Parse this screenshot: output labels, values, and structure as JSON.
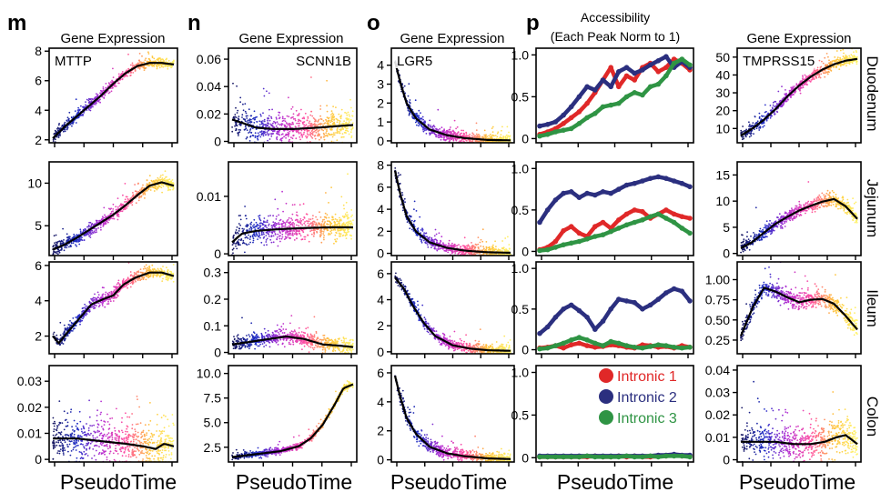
{
  "figure": {
    "panel_letters": [
      "m",
      "n",
      "o",
      "p"
    ],
    "column_titles": {
      "m": "Gene Expression",
      "n": "Gene Expression",
      "o": "Gene Expression",
      "p_line1": "Accessibility",
      "p_line2": "(Each Peak Norm to 1)",
      "q": "Gene Expression"
    },
    "xlabel": "PseudoTime",
    "row_labels": [
      "Duodenum",
      "Jejunum",
      "Ileum",
      "Colon"
    ],
    "gradient_colors": [
      "#15155e",
      "#2230c8",
      "#b52fd3",
      "#ff4fa3",
      "#ffc23a",
      "#fff56a"
    ],
    "legend": [
      {
        "label": "Intronic 1",
        "color": "#e02828"
      },
      {
        "label": "Intronic 2",
        "color": "#2b2f7f"
      },
      {
        "label": "Intronic 3",
        "color": "#2f9444"
      }
    ]
  },
  "chart_data": [
    {
      "id": "m-duodenum",
      "type": "scatter",
      "gene": "MTTP",
      "tick_labels": [
        "2",
        "4",
        "6",
        "8"
      ],
      "ylim": [
        1.8,
        8.2
      ],
      "trend": [
        [
          0,
          2.1
        ],
        [
          0.1,
          2.9
        ],
        [
          0.2,
          3.6
        ],
        [
          0.3,
          4.3
        ],
        [
          0.4,
          5.0
        ],
        [
          0.5,
          5.8
        ],
        [
          0.6,
          6.5
        ],
        [
          0.7,
          7.0
        ],
        [
          0.8,
          7.2
        ],
        [
          0.9,
          7.2
        ],
        [
          1,
          7.1
        ]
      ],
      "spread": 0.35
    },
    {
      "id": "m-jejunum",
      "type": "scatter",
      "gene": "",
      "tick_labels": [
        "5",
        "10"
      ],
      "ylim": [
        1.5,
        12.5
      ],
      "trend": [
        [
          0,
          2.2
        ],
        [
          0.1,
          2.8
        ],
        [
          0.2,
          3.6
        ],
        [
          0.3,
          4.5
        ],
        [
          0.4,
          5.4
        ],
        [
          0.5,
          6.3
        ],
        [
          0.6,
          7.4
        ],
        [
          0.7,
          8.6
        ],
        [
          0.8,
          9.7
        ],
        [
          0.9,
          10.1
        ],
        [
          1,
          9.7
        ]
      ],
      "spread": 0.8
    },
    {
      "id": "m-ileum",
      "type": "scatter",
      "gene": "",
      "tick_labels": [
        "2",
        "4",
        "6"
      ],
      "ylim": [
        1.0,
        6.2
      ],
      "trend": [
        [
          0,
          2.0
        ],
        [
          0.05,
          1.6
        ],
        [
          0.12,
          2.2
        ],
        [
          0.22,
          3.0
        ],
        [
          0.32,
          3.8
        ],
        [
          0.42,
          4.1
        ],
        [
          0.5,
          4.3
        ],
        [
          0.58,
          4.9
        ],
        [
          0.68,
          5.3
        ],
        [
          0.8,
          5.6
        ],
        [
          0.9,
          5.6
        ],
        [
          1,
          5.4
        ]
      ],
      "spread": 0.35
    },
    {
      "id": "m-colon",
      "type": "scatter",
      "gene": "",
      "tick_labels": [
        "0",
        "0.01",
        "0.02",
        "0.03"
      ],
      "ylim": [
        -0.001,
        0.036
      ],
      "trend": [
        [
          0,
          0.008
        ],
        [
          0.2,
          0.008
        ],
        [
          0.4,
          0.007
        ],
        [
          0.6,
          0.006
        ],
        [
          0.75,
          0.005
        ],
        [
          0.85,
          0.004
        ],
        [
          0.92,
          0.006
        ],
        [
          1,
          0.005
        ]
      ],
      "spread": 0.009
    },
    {
      "id": "n-duodenum",
      "type": "scatter",
      "gene": "SCNN1B",
      "tick_labels": [
        "0",
        "0.02",
        "0.04",
        "0.06"
      ],
      "ylim": [
        -0.001,
        0.068
      ],
      "trend": [
        [
          0,
          0.016
        ],
        [
          0.1,
          0.013
        ],
        [
          0.2,
          0.01
        ],
        [
          0.35,
          0.009
        ],
        [
          0.5,
          0.009
        ],
        [
          0.7,
          0.01
        ],
        [
          0.85,
          0.011
        ],
        [
          1,
          0.012
        ]
      ],
      "spread": 0.012
    },
    {
      "id": "n-jejunum",
      "type": "scatter",
      "gene": "",
      "tick_labels": [
        "0",
        "0.01"
      ],
      "ylim": [
        -0.0003,
        0.016
      ],
      "trend": [
        [
          0,
          0.002
        ],
        [
          0.08,
          0.0035
        ],
        [
          0.2,
          0.004
        ],
        [
          0.4,
          0.0043
        ],
        [
          0.6,
          0.0045
        ],
        [
          0.8,
          0.0046
        ],
        [
          1,
          0.0046
        ]
      ],
      "spread": 0.0025
    },
    {
      "id": "n-ileum",
      "type": "scatter",
      "gene": "",
      "tick_labels": [
        "0",
        "0.1",
        "0.2",
        "0.3"
      ],
      "ylim": [
        -0.005,
        0.34
      ],
      "trend": [
        [
          0,
          0.03
        ],
        [
          0.15,
          0.04
        ],
        [
          0.3,
          0.05
        ],
        [
          0.45,
          0.06
        ],
        [
          0.6,
          0.05
        ],
        [
          0.75,
          0.03
        ],
        [
          0.9,
          0.025
        ],
        [
          1,
          0.02
        ]
      ],
      "spread": 0.03
    },
    {
      "id": "n-colon",
      "type": "scatter",
      "gene": "",
      "tick_labels": [
        "2.5",
        "5.0",
        "7.5",
        "10.0"
      ],
      "ylim": [
        1.0,
        10.8
      ],
      "trend": [
        [
          0,
          1.5
        ],
        [
          0.2,
          1.8
        ],
        [
          0.4,
          2.1
        ],
        [
          0.55,
          2.6
        ],
        [
          0.65,
          3.4
        ],
        [
          0.75,
          4.8
        ],
        [
          0.85,
          6.9
        ],
        [
          0.92,
          8.5
        ],
        [
          1,
          8.9
        ]
      ],
      "spread": 0.35
    },
    {
      "id": "o-duodenum",
      "type": "scatter",
      "gene": "LGR5",
      "tick_labels": [
        "0",
        "1",
        "2",
        "3",
        "4"
      ],
      "ylim": [
        -0.1,
        4.9
      ],
      "trend": [
        [
          0,
          4.2
        ],
        [
          0.05,
          3.0
        ],
        [
          0.1,
          2.0
        ],
        [
          0.18,
          1.2
        ],
        [
          0.3,
          0.6
        ],
        [
          0.45,
          0.3
        ],
        [
          0.6,
          0.15
        ],
        [
          0.8,
          0.05
        ],
        [
          1,
          0.03
        ]
      ],
      "spread": 0.35
    },
    {
      "id": "o-jejunum",
      "type": "scatter",
      "gene": "",
      "tick_labels": [
        "0",
        "2",
        "4",
        "6",
        "8"
      ],
      "ylim": [
        -0.2,
        8.3
      ],
      "trend": [
        [
          0,
          7.5
        ],
        [
          0.05,
          5.2
        ],
        [
          0.1,
          3.4
        ],
        [
          0.18,
          2.0
        ],
        [
          0.3,
          1.0
        ],
        [
          0.45,
          0.5
        ],
        [
          0.6,
          0.25
        ],
        [
          0.8,
          0.1
        ],
        [
          1,
          0.05
        ]
      ],
      "spread": 0.6
    },
    {
      "id": "o-ileum",
      "type": "scatter",
      "gene": "",
      "tick_labels": [
        "0",
        "2",
        "4",
        "6"
      ],
      "ylim": [
        -0.15,
        6.9
      ],
      "trend": [
        [
          0,
          5.7
        ],
        [
          0.08,
          4.8
        ],
        [
          0.15,
          3.6
        ],
        [
          0.25,
          2.2
        ],
        [
          0.35,
          1.2
        ],
        [
          0.5,
          0.5
        ],
        [
          0.65,
          0.25
        ],
        [
          0.8,
          0.12
        ],
        [
          1,
          0.08
        ]
      ],
      "spread": 0.45
    },
    {
      "id": "o-colon",
      "type": "scatter",
      "gene": "",
      "tick_labels": [
        "0",
        "2",
        "4",
        "6"
      ],
      "ylim": [
        -0.15,
        6.5
      ],
      "trend": [
        [
          0,
          5.8
        ],
        [
          0.05,
          4.2
        ],
        [
          0.1,
          2.9
        ],
        [
          0.18,
          1.8
        ],
        [
          0.3,
          0.9
        ],
        [
          0.45,
          0.45
        ],
        [
          0.6,
          0.25
        ],
        [
          0.8,
          0.1
        ],
        [
          1,
          0.05
        ]
      ],
      "spread": 0.45
    },
    {
      "id": "p-duodenum",
      "type": "line",
      "tick_labels": [
        "0",
        "0.5",
        "1.0"
      ],
      "ylim": [
        -0.05,
        1.08
      ],
      "series": [
        {
          "name": "Intronic 1",
          "values": [
            0.05,
            0.08,
            0.12,
            0.18,
            0.25,
            0.32,
            0.42,
            0.55,
            0.7,
            0.85,
            0.62,
            0.75,
            0.7,
            0.85,
            0.9,
            0.8,
            0.85,
            0.95,
            0.9,
            0.82
          ]
        },
        {
          "name": "Intronic 2",
          "values": [
            0.15,
            0.17,
            0.2,
            0.28,
            0.38,
            0.5,
            0.62,
            0.58,
            0.7,
            0.62,
            0.8,
            0.85,
            0.78,
            0.82,
            0.88,
            0.93,
            0.98,
            0.85,
            0.92,
            0.85
          ]
        },
        {
          "name": "Intronic 3",
          "values": [
            0.03,
            0.05,
            0.08,
            0.1,
            0.12,
            0.18,
            0.25,
            0.3,
            0.38,
            0.4,
            0.42,
            0.5,
            0.55,
            0.52,
            0.62,
            0.65,
            0.75,
            0.9,
            0.95,
            0.88
          ]
        }
      ]
    },
    {
      "id": "p-jejunum",
      "type": "line",
      "tick_labels": [
        "0",
        "0.5",
        "1.0"
      ],
      "ylim": [
        -0.05,
        1.08
      ],
      "series": [
        {
          "name": "Intronic 1",
          "values": [
            0.02,
            0.05,
            0.12,
            0.25,
            0.3,
            0.22,
            0.18,
            0.3,
            0.35,
            0.28,
            0.38,
            0.45,
            0.5,
            0.48,
            0.4,
            0.45,
            0.5,
            0.45,
            0.42,
            0.4
          ]
        },
        {
          "name": "Intronic 2",
          "values": [
            0.35,
            0.5,
            0.62,
            0.7,
            0.72,
            0.65,
            0.7,
            0.68,
            0.72,
            0.7,
            0.75,
            0.8,
            0.82,
            0.85,
            0.88,
            0.9,
            0.88,
            0.85,
            0.82,
            0.78
          ]
        },
        {
          "name": "Intronic 3",
          "values": [
            0.01,
            0.02,
            0.05,
            0.08,
            0.1,
            0.12,
            0.15,
            0.18,
            0.2,
            0.24,
            0.28,
            0.32,
            0.35,
            0.38,
            0.42,
            0.45,
            0.4,
            0.35,
            0.28,
            0.22
          ]
        }
      ]
    },
    {
      "id": "p-ileum",
      "type": "line",
      "tick_labels": [
        "0",
        "0.5",
        "1.0"
      ],
      "ylim": [
        -0.05,
        1.08
      ],
      "series": [
        {
          "name": "Intronic 1",
          "values": [
            0.02,
            0.03,
            0.05,
            0.02,
            0.06,
            0.08,
            0.05,
            0.03,
            0.04,
            0.06,
            0.05,
            0.03,
            0.02,
            0.06,
            0.05,
            0.03,
            0.04,
            0.02,
            0.05,
            0.03
          ]
        },
        {
          "name": "Intronic 2",
          "values": [
            0.2,
            0.28,
            0.4,
            0.5,
            0.55,
            0.48,
            0.4,
            0.25,
            0.35,
            0.5,
            0.62,
            0.6,
            0.58,
            0.5,
            0.55,
            0.62,
            0.7,
            0.75,
            0.72,
            0.6
          ]
        },
        {
          "name": "Intronic 3",
          "values": [
            0.01,
            0.02,
            0.05,
            0.08,
            0.12,
            0.15,
            0.12,
            0.08,
            0.05,
            0.1,
            0.08,
            0.05,
            0.03,
            0.02,
            0.04,
            0.06,
            0.05,
            0.03,
            0.02,
            0.03
          ]
        }
      ]
    },
    {
      "id": "p-colon",
      "type": "line",
      "tick_labels": [
        "0",
        "0.5",
        "1.0"
      ],
      "ylim": [
        -0.05,
        1.08
      ],
      "series": [
        {
          "name": "Intronic 1",
          "values": [
            0.01,
            0.01,
            0.01,
            0.01,
            0.01,
            0.01,
            0.01,
            0.02,
            0.01,
            0.01,
            0.02,
            0.01,
            0.02,
            0.01,
            0.01,
            0.02,
            0.02,
            0.03,
            0.02,
            0.02
          ]
        },
        {
          "name": "Intronic 2",
          "values": [
            0.02,
            0.02,
            0.02,
            0.02,
            0.02,
            0.02,
            0.02,
            0.02,
            0.02,
            0.02,
            0.02,
            0.02,
            0.02,
            0.02,
            0.02,
            0.03,
            0.03,
            0.04,
            0.03,
            0.03
          ]
        },
        {
          "name": "Intronic 3",
          "values": [
            0.01,
            0.01,
            0.01,
            0.01,
            0.01,
            0.01,
            0.02,
            0.01,
            0.01,
            0.01,
            0.01,
            0.02,
            0.01,
            0.01,
            0.02,
            0.01,
            0.02,
            0.02,
            0.02,
            0.01
          ]
        }
      ]
    },
    {
      "id": "q-duodenum",
      "type": "scatter",
      "gene": "TMPRSS15",
      "tick_labels": [
        "10",
        "20",
        "30",
        "40",
        "50"
      ],
      "ylim": [
        2,
        55
      ],
      "trend": [
        [
          0,
          6
        ],
        [
          0.1,
          10
        ],
        [
          0.2,
          15
        ],
        [
          0.3,
          21
        ],
        [
          0.4,
          28
        ],
        [
          0.5,
          34
        ],
        [
          0.6,
          39
        ],
        [
          0.7,
          43
        ],
        [
          0.8,
          46
        ],
        [
          0.9,
          48
        ],
        [
          1,
          49
        ]
      ],
      "spread": 3.2
    },
    {
      "id": "q-jejunum",
      "type": "scatter",
      "gene": "",
      "tick_labels": [
        "0",
        "5",
        "10",
        "15"
      ],
      "ylim": [
        -0.4,
        17.5
      ],
      "trend": [
        [
          0,
          1.0
        ],
        [
          0.1,
          2.2
        ],
        [
          0.2,
          4.0
        ],
        [
          0.3,
          5.7
        ],
        [
          0.4,
          7.0
        ],
        [
          0.5,
          8.2
        ],
        [
          0.6,
          9.1
        ],
        [
          0.7,
          9.9
        ],
        [
          0.8,
          10.4
        ],
        [
          0.9,
          9.0
        ],
        [
          1,
          6.6
        ]
      ],
      "spread": 1.4
    },
    {
      "id": "q-ileum",
      "type": "scatter",
      "gene": "",
      "tick_labels": [
        "0.25",
        "0.50",
        "0.75",
        "1.00"
      ],
      "ylim": [
        0.08,
        1.22
      ],
      "trend": [
        [
          0,
          0.3
        ],
        [
          0.1,
          0.65
        ],
        [
          0.2,
          0.9
        ],
        [
          0.3,
          0.85
        ],
        [
          0.4,
          0.78
        ],
        [
          0.5,
          0.72
        ],
        [
          0.6,
          0.75
        ],
        [
          0.7,
          0.76
        ],
        [
          0.8,
          0.7
        ],
        [
          0.9,
          0.55
        ],
        [
          1,
          0.38
        ]
      ],
      "spread": 0.12
    },
    {
      "id": "q-colon",
      "type": "scatter",
      "gene": "",
      "tick_labels": [
        "0",
        "0.01",
        "0.02",
        "0.03",
        "0.04"
      ],
      "ylim": [
        -0.001,
        0.042
      ],
      "trend": [
        [
          0,
          0.008
        ],
        [
          0.15,
          0.008
        ],
        [
          0.3,
          0.008
        ],
        [
          0.45,
          0.007
        ],
        [
          0.6,
          0.007
        ],
        [
          0.72,
          0.008
        ],
        [
          0.82,
          0.01
        ],
        [
          0.9,
          0.011
        ],
        [
          1,
          0.007
        ]
      ],
      "spread": 0.008
    }
  ]
}
